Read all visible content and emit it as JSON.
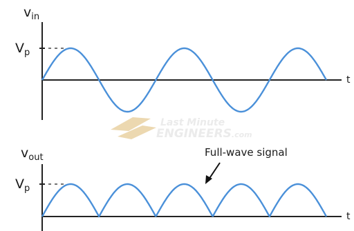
{
  "top_plot": {
    "v_symbol": "v",
    "v_subscript": "in",
    "peak_symbol": "V",
    "peak_subscript": "p",
    "time_label": "t"
  },
  "bottom_plot": {
    "v_symbol": "v",
    "v_subscript": "out",
    "peak_symbol": "V",
    "peak_subscript": "p",
    "time_label": "t",
    "annotation": "Full-wave signal"
  },
  "watermark": {
    "line1": "Last Minute",
    "line2": "ENGINEERS",
    "suffix": ".com"
  },
  "colors": {
    "wave": "#4a90d9",
    "axis": "#222222",
    "dash": "#444444",
    "watermark": "#ecd8b0",
    "watermark_text": "#ebebeb"
  }
}
